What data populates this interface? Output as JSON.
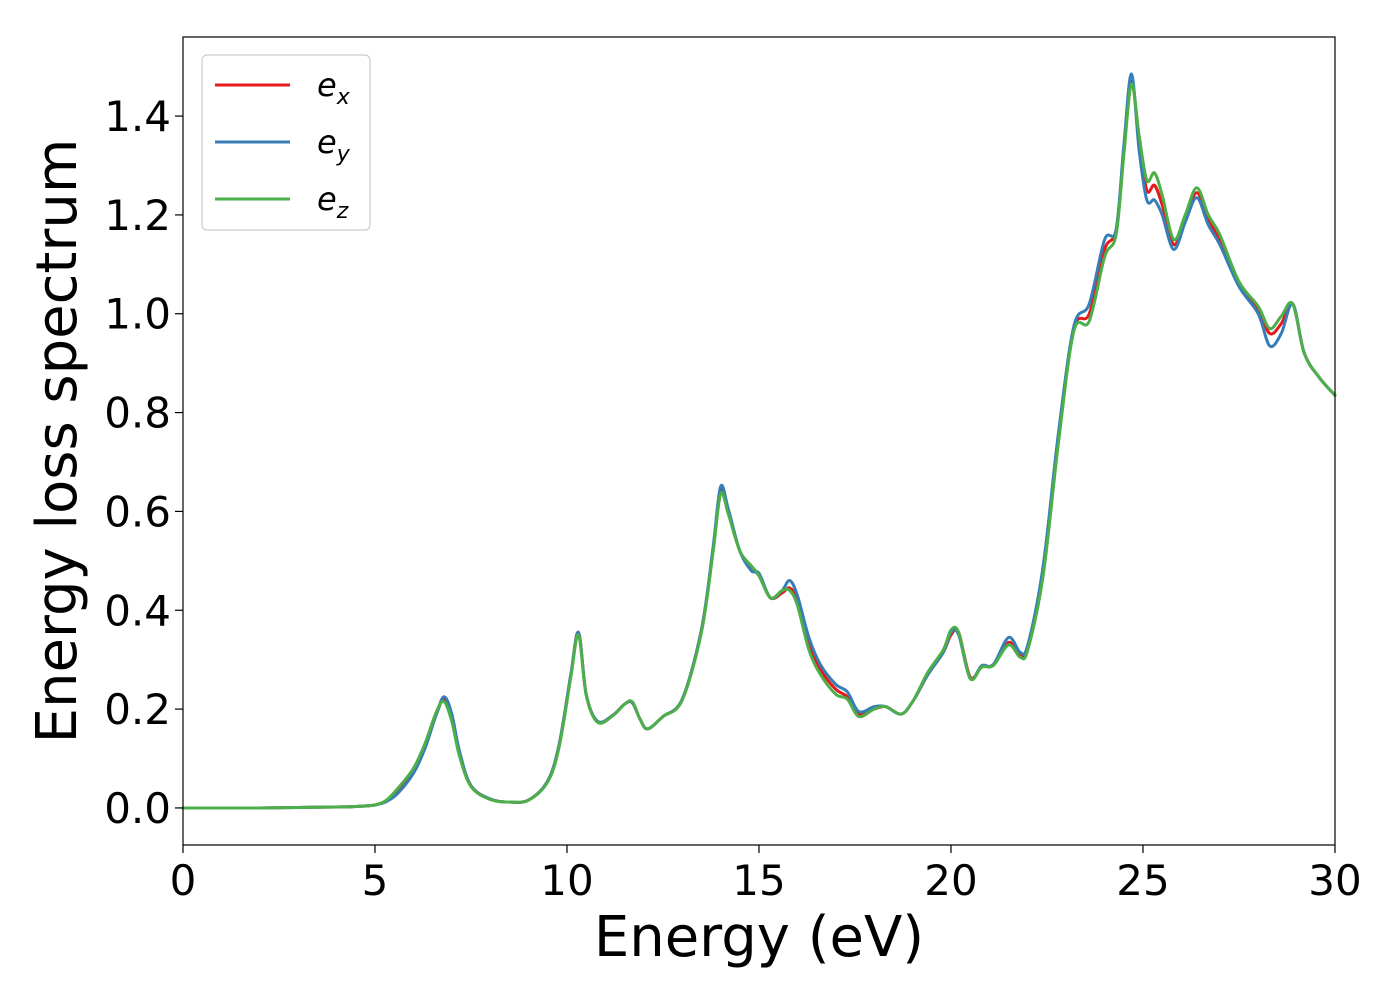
{
  "chart_data": {
    "type": "line",
    "xlabel": "Energy (eV)",
    "ylabel": "Energy loss spectrum",
    "xlim": [
      0,
      30
    ],
    "ylim": [
      -0.075,
      1.56
    ],
    "xticks": [
      0,
      5,
      10,
      15,
      20,
      25,
      30
    ],
    "xtick_labels": [
      "0",
      "5",
      "10",
      "15",
      "20",
      "25",
      "30"
    ],
    "yticks": [
      0.0,
      0.2,
      0.4,
      0.6,
      0.8,
      1.0,
      1.2,
      1.4
    ],
    "ytick_labels": [
      "0.0",
      "0.2",
      "0.4",
      "0.6",
      "0.8",
      "1.0",
      "1.2",
      "1.4"
    ],
    "grid": false,
    "legend_position": "top-left",
    "x": [
      0,
      1,
      2,
      3,
      4,
      4.5,
      5,
      5.3,
      5.6,
      6,
      6.3,
      6.6,
      6.8,
      7.0,
      7.2,
      7.5,
      8,
      8.5,
      9,
      9.5,
      9.8,
      10.1,
      10.3,
      10.5,
      10.8,
      11.2,
      11.5,
      11.7,
      11.9,
      12.1,
      12.5,
      13,
      13.5,
      13.8,
      14.0,
      14.2,
      14.5,
      14.8,
      15.0,
      15.3,
      15.6,
      15.8,
      16.0,
      16.3,
      16.6,
      17.0,
      17.3,
      17.6,
      18.0,
      18.3,
      18.7,
      19.0,
      19.4,
      19.8,
      20.0,
      20.2,
      20.5,
      20.8,
      21.1,
      21.5,
      21.8,
      22.0,
      22.4,
      22.8,
      23.2,
      23.6,
      24.0,
      24.3,
      24.5,
      24.7,
      24.9,
      25.1,
      25.3,
      25.5,
      25.8,
      26.1,
      26.4,
      26.7,
      27.0,
      27.5,
      28.0,
      28.3,
      28.6,
      28.9,
      29.2,
      29.6,
      30.0
    ],
    "series": [
      {
        "name": "e_x",
        "legend_label": "e",
        "legend_sub": "x",
        "color": "#e41a1c",
        "values": [
          0.0,
          0.0,
          0.0,
          0.001,
          0.002,
          0.003,
          0.006,
          0.015,
          0.035,
          0.075,
          0.125,
          0.19,
          0.22,
          0.18,
          0.11,
          0.045,
          0.018,
          0.012,
          0.016,
          0.055,
          0.13,
          0.27,
          0.355,
          0.23,
          0.175,
          0.188,
          0.21,
          0.213,
          0.18,
          0.16,
          0.185,
          0.22,
          0.36,
          0.52,
          0.645,
          0.6,
          0.52,
          0.485,
          0.47,
          0.425,
          0.435,
          0.445,
          0.42,
          0.33,
          0.28,
          0.24,
          0.225,
          0.19,
          0.2,
          0.205,
          0.19,
          0.215,
          0.27,
          0.315,
          0.35,
          0.355,
          0.265,
          0.285,
          0.29,
          0.335,
          0.31,
          0.325,
          0.48,
          0.75,
          0.97,
          1.0,
          1.13,
          1.17,
          1.33,
          1.47,
          1.35,
          1.25,
          1.26,
          1.22,
          1.14,
          1.19,
          1.245,
          1.19,
          1.15,
          1.06,
          1.01,
          0.96,
          0.98,
          1.02,
          0.92,
          0.87,
          0.835
        ]
      },
      {
        "name": "e_y",
        "legend_label": "e",
        "legend_sub": "y",
        "color": "#377eb8",
        "values": [
          0.0,
          0.0,
          0.0,
          0.001,
          0.002,
          0.003,
          0.006,
          0.013,
          0.03,
          0.07,
          0.12,
          0.19,
          0.225,
          0.19,
          0.115,
          0.045,
          0.018,
          0.012,
          0.016,
          0.055,
          0.13,
          0.27,
          0.355,
          0.23,
          0.175,
          0.188,
          0.21,
          0.213,
          0.18,
          0.16,
          0.185,
          0.22,
          0.36,
          0.525,
          0.65,
          0.605,
          0.52,
          0.48,
          0.475,
          0.425,
          0.44,
          0.46,
          0.43,
          0.345,
          0.29,
          0.25,
          0.235,
          0.195,
          0.205,
          0.205,
          0.19,
          0.215,
          0.27,
          0.315,
          0.355,
          0.35,
          0.262,
          0.288,
          0.29,
          0.345,
          0.315,
          0.33,
          0.49,
          0.76,
          0.975,
          1.02,
          1.15,
          1.17,
          1.34,
          1.485,
          1.33,
          1.23,
          1.23,
          1.2,
          1.13,
          1.185,
          1.235,
          1.18,
          1.14,
          1.055,
          1.0,
          0.935,
          0.96,
          1.02,
          0.92,
          0.87,
          0.835
        ]
      },
      {
        "name": "e_z",
        "legend_label": "e",
        "legend_sub": "z",
        "color": "#4daf4a",
        "values": [
          0.0,
          0.0,
          0.0,
          0.001,
          0.002,
          0.003,
          0.006,
          0.016,
          0.04,
          0.08,
          0.13,
          0.195,
          0.215,
          0.175,
          0.105,
          0.043,
          0.017,
          0.012,
          0.016,
          0.053,
          0.125,
          0.265,
          0.35,
          0.228,
          0.173,
          0.187,
          0.21,
          0.215,
          0.18,
          0.16,
          0.185,
          0.218,
          0.355,
          0.515,
          0.635,
          0.595,
          0.52,
          0.49,
          0.47,
          0.425,
          0.44,
          0.44,
          0.41,
          0.32,
          0.27,
          0.23,
          0.22,
          0.185,
          0.2,
          0.205,
          0.19,
          0.215,
          0.275,
          0.32,
          0.36,
          0.355,
          0.262,
          0.285,
          0.288,
          0.33,
          0.305,
          0.32,
          0.47,
          0.74,
          0.965,
          0.985,
          1.115,
          1.16,
          1.32,
          1.465,
          1.36,
          1.27,
          1.285,
          1.24,
          1.15,
          1.2,
          1.255,
          1.2,
          1.16,
          1.065,
          1.015,
          0.97,
          0.995,
          1.02,
          0.92,
          0.87,
          0.835
        ]
      }
    ]
  }
}
